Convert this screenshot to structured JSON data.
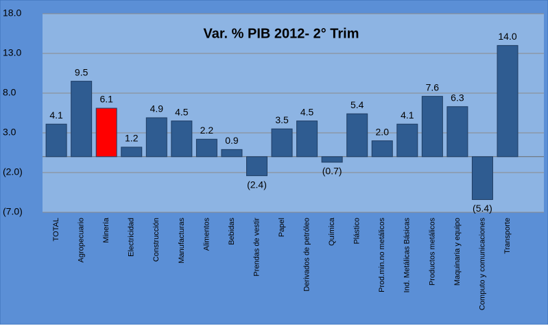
{
  "chart_data": {
    "type": "bar",
    "title": "Var. % PIB  2012- 2° Trim",
    "categories": [
      "TOTAL",
      "Agropecuario",
      "Minería",
      "Electricidad",
      "Construcción",
      "Manufacturas",
      "Alimentos",
      "Bebidas",
      "Prendas de vestir",
      "Papel",
      "Derivados de petróleo",
      "Química",
      "Plástico",
      "Prod.min.no metálicos",
      "Ind. Metálicas Básicas",
      "Productos metálicos",
      "Maquinaria y equipo",
      "Computo y comunicaciones",
      "Transporte"
    ],
    "values": [
      4.1,
      9.5,
      6.1,
      1.2,
      4.9,
      4.5,
      2.2,
      0.9,
      -2.4,
      3.5,
      4.5,
      -0.7,
      5.4,
      2.0,
      4.1,
      7.6,
      6.3,
      -5.4,
      14.0
    ],
    "value_labels": [
      "4.1",
      "9.5",
      "6.1",
      "1.2",
      "4.9",
      "4.5",
      "2.2",
      "0.9",
      "(2.4)",
      "3.5",
      "4.5",
      "(0.7)",
      "5.4",
      "2.0",
      "4.1",
      "7.6",
      "6.3",
      "(5.4)",
      "14.0"
    ],
    "color": "#2f5c91",
    "highlight": {
      "index": 2,
      "color": "#ff0000"
    },
    "ylim": [
      -7,
      18
    ],
    "yticks": [
      {
        "value": -7,
        "label": "(7.0)"
      },
      {
        "value": -2,
        "label": "(2.0)"
      },
      {
        "value": 3,
        "label": "3.0"
      },
      {
        "value": 8,
        "label": "8.0"
      },
      {
        "value": 13,
        "label": "13.0"
      },
      {
        "value": 18,
        "label": "18.0"
      }
    ],
    "grid": true
  }
}
